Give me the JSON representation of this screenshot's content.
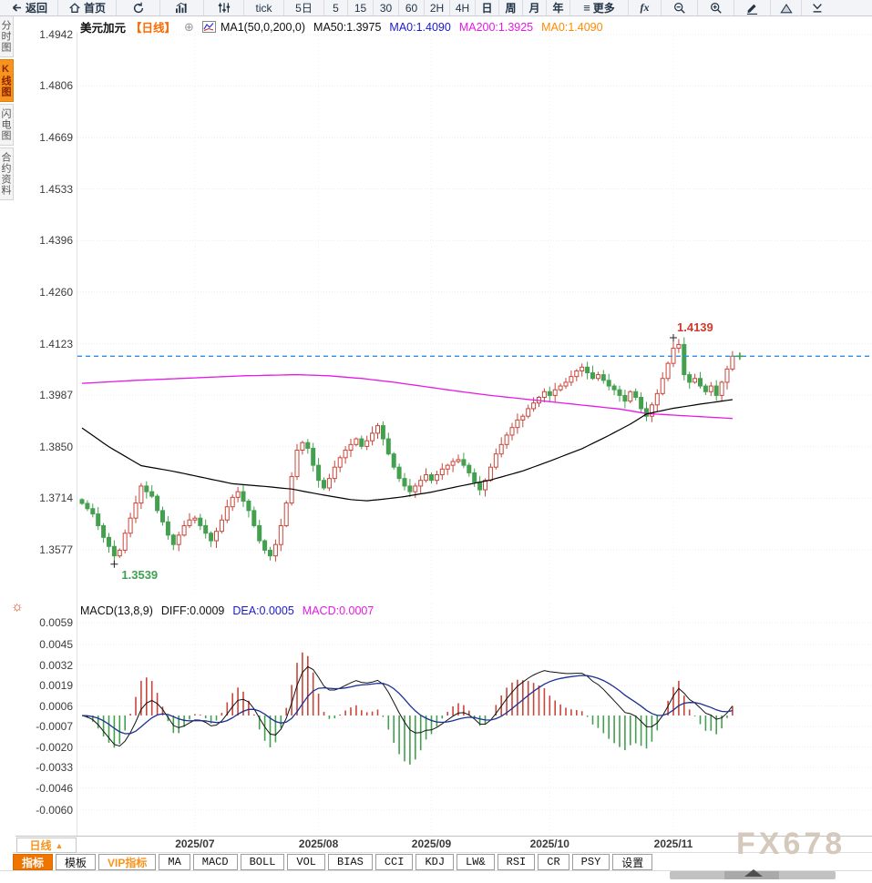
{
  "toolbar_top": {
    "back": "返回",
    "home": "首页",
    "tick": "tick",
    "d5": "5日",
    "m5": "5",
    "m15": "15",
    "m30": "30",
    "m60": "60",
    "h2": "2H",
    "h4": "4H",
    "day": "日",
    "week": "周",
    "month": "月",
    "year": "年",
    "more": "更多",
    "fx": "fx"
  },
  "sidebar": {
    "tabs": [
      {
        "label": "分时图",
        "active": false
      },
      {
        "label": "K线图",
        "active": true
      },
      {
        "label": "闪电图",
        "active": false
      },
      {
        "label": "合约资料",
        "active": false
      }
    ]
  },
  "chart_header": {
    "symbol": "美元加元",
    "period": "【日线】",
    "ma_settings": "MA1(50,0,200,0)",
    "ma50": "MA50:1.3975",
    "ma0_blue": "MA0:1.4090",
    "ma200": "MA200:1.3925",
    "ma0_orange": "MA0:1.4090"
  },
  "macd_header": {
    "title": "MACD(13,8,9)",
    "diff": "DIFF:0.0009",
    "dea": "DEA:0.0005",
    "macd": "MACD:0.0007"
  },
  "bottom_bar": {
    "timeframe": "日线",
    "timeframe_arrow": "▲",
    "indicators": [
      {
        "label": "指标",
        "style": "active"
      },
      {
        "label": "模板",
        "style": "normal"
      },
      {
        "label": "VIP指标",
        "style": "vip"
      },
      {
        "label": "MA",
        "style": "mono"
      },
      {
        "label": "MACD",
        "style": "mono"
      },
      {
        "label": "BOLL",
        "style": "mono"
      },
      {
        "label": "VOL",
        "style": "mono"
      },
      {
        "label": "BIAS",
        "style": "mono"
      },
      {
        "label": "CCI",
        "style": "mono"
      },
      {
        "label": "KDJ",
        "style": "mono"
      },
      {
        "label": "LW&",
        "style": "mono"
      },
      {
        "label": "RSI",
        "style": "mono"
      },
      {
        "label": "CR",
        "style": "mono"
      },
      {
        "label": "PSY",
        "style": "mono"
      },
      {
        "label": "设置",
        "style": "normal"
      }
    ],
    "watermark": "FX678"
  },
  "chart_data": {
    "type": "candlestick",
    "title": "美元加元 日线 (USD/CAD Daily)",
    "legend": [
      "MA50",
      "MA200",
      "MACD DIFF",
      "MACD DEA"
    ],
    "x_labels": [
      "2025/07",
      "2025/08",
      "2025/09",
      "2025/10",
      "2025/11"
    ],
    "x_label_indices": [
      21,
      44,
      65,
      87,
      110
    ],
    "y_ticks_main": [
      1.4942,
      1.4806,
      1.4669,
      1.4533,
      1.4396,
      1.426,
      1.4123,
      1.3987,
      1.385,
      1.3714,
      1.3577
    ],
    "y_ticks_macd": [
      0.0059,
      0.0045,
      0.0032,
      0.0019,
      0.0006,
      -0.0007,
      -0.002,
      -0.0033,
      -0.0046,
      -0.006
    ],
    "open_first": 1.371,
    "closes": [
      1.37,
      1.3686,
      1.3672,
      1.3641,
      1.361,
      1.3586,
      1.3561,
      1.3576,
      1.3621,
      1.3661,
      1.3701,
      1.3746,
      1.3731,
      1.3719,
      1.3681,
      1.3651,
      1.3616,
      1.3591,
      1.3616,
      1.3641,
      1.3656,
      1.3661,
      1.3641,
      1.3621,
      1.3601,
      1.3626,
      1.3656,
      1.3691,
      1.3716,
      1.3731,
      1.3706,
      1.3681,
      1.3641,
      1.3601,
      1.3576,
      1.3561,
      1.3591,
      1.3641,
      1.3701,
      1.3771,
      1.3841,
      1.3861,
      1.3846,
      1.3801,
      1.3761,
      1.3741,
      1.3766,
      1.3796,
      1.3821,
      1.3841,
      1.3856,
      1.3871,
      1.3851,
      1.3866,
      1.3886,
      1.3906,
      1.3871,
      1.3831,
      1.3796,
      1.3766,
      1.3746,
      1.3731,
      1.3746,
      1.3761,
      1.3776,
      1.3761,
      1.3776,
      1.3791,
      1.3801,
      1.3811,
      1.3816,
      1.3801,
      1.3781,
      1.3756,
      1.3736,
      1.3761,
      1.3796,
      1.3831,
      1.3856,
      1.3881,
      1.3901,
      1.3921,
      1.3931,
      1.3951,
      1.3966,
      1.3981,
      1.3996,
      1.3986,
      1.4001,
      1.4011,
      1.4021,
      1.4036,
      1.4051,
      1.4061,
      1.4046,
      1.4031,
      1.4041,
      1.4026,
      1.4011,
      1.4001,
      1.3986,
      1.3971,
      1.3996,
      1.3981,
      1.3951,
      1.3931,
      1.3961,
      1.3991,
      1.4031,
      1.4071,
      1.4111,
      1.4121,
      1.4041,
      1.4021,
      1.4031,
      1.4011,
      1.3996,
      1.4011,
      1.3986,
      1.4021,
      1.4056,
      1.409
    ],
    "low_point": {
      "index": 6,
      "value": 1.3539,
      "label": "1.3539"
    },
    "high_point": {
      "index": 110,
      "value": 1.4139,
      "label": "1.4139"
    },
    "current_price": 1.409,
    "ma50_points": [
      [
        0,
        1.39
      ],
      [
        5,
        1.385
      ],
      [
        11,
        1.38
      ],
      [
        17,
        1.3785
      ],
      [
        22,
        1.377
      ],
      [
        28,
        1.3752
      ],
      [
        34,
        1.3745
      ],
      [
        39,
        1.3738
      ],
      [
        45,
        1.3722
      ],
      [
        50,
        1.371
      ],
      [
        53,
        1.3707
      ],
      [
        56,
        1.3711
      ],
      [
        60,
        1.3718
      ],
      [
        65,
        1.373
      ],
      [
        70,
        1.3745
      ],
      [
        76,
        1.3762
      ],
      [
        82,
        1.3786
      ],
      [
        87,
        1.3812
      ],
      [
        93,
        1.3845
      ],
      [
        98,
        1.388
      ],
      [
        102,
        1.391
      ],
      [
        105,
        1.3937
      ],
      [
        110,
        1.3952
      ],
      [
        115,
        1.3963
      ],
      [
        121,
        1.3975
      ]
    ],
    "ma200_points": [
      [
        0,
        1.4018
      ],
      [
        10,
        1.4026
      ],
      [
        20,
        1.4032
      ],
      [
        30,
        1.4038
      ],
      [
        40,
        1.4041
      ],
      [
        46,
        1.4038
      ],
      [
        52,
        1.4031
      ],
      [
        58,
        1.4021
      ],
      [
        64,
        1.4009
      ],
      [
        70,
        1.3997
      ],
      [
        76,
        1.3986
      ],
      [
        82,
        1.3977
      ],
      [
        88,
        1.3968
      ],
      [
        94,
        1.3959
      ],
      [
        100,
        1.395
      ],
      [
        105,
        1.3938
      ],
      [
        111,
        1.3933
      ],
      [
        116,
        1.3929
      ],
      [
        121,
        1.3925
      ]
    ],
    "macd_params": [
      13,
      8,
      9
    ],
    "macd_last": {
      "diff": 0.0009,
      "dea": 0.0005,
      "macd": 0.0007
    },
    "colors": {
      "up": "#c8463a",
      "down": "#43a04e",
      "ma50": "#000000",
      "ma200": "#e619e6",
      "diff": "#111111",
      "dea": "#1b2f96",
      "current_line": "#2e8de6",
      "high_label": "#d0392b",
      "low_label": "#3fa052"
    }
  }
}
